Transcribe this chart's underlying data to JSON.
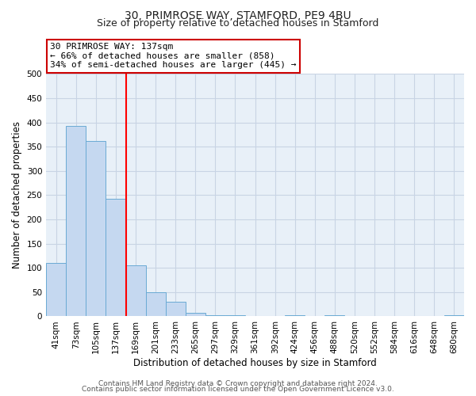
{
  "title": "30, PRIMROSE WAY, STAMFORD, PE9 4BU",
  "subtitle": "Size of property relative to detached houses in Stamford",
  "xlabel": "Distribution of detached houses by size in Stamford",
  "ylabel": "Number of detached properties",
  "bin_labels": [
    "41sqm",
    "73sqm",
    "105sqm",
    "137sqm",
    "169sqm",
    "201sqm",
    "233sqm",
    "265sqm",
    "297sqm",
    "329sqm",
    "361sqm",
    "392sqm",
    "424sqm",
    "456sqm",
    "488sqm",
    "520sqm",
    "552sqm",
    "584sqm",
    "616sqm",
    "648sqm",
    "680sqm"
  ],
  "bar_values": [
    111,
    393,
    361,
    243,
    105,
    50,
    30,
    8,
    2,
    2,
    0,
    0,
    2,
    0,
    2,
    0,
    0,
    0,
    0,
    0,
    2
  ],
  "bar_color": "#c5d8f0",
  "bar_edge_color": "#6aaad4",
  "vline_x_index": 3,
  "vline_color": "#ff0000",
  "annotation_box_text": "30 PRIMROSE WAY: 137sqm\n← 66% of detached houses are smaller (858)\n34% of semi-detached houses are larger (445) →",
  "annotation_box_facecolor": "#ffffff",
  "annotation_box_edgecolor": "#cc0000",
  "ylim": [
    0,
    500
  ],
  "yticks": [
    0,
    50,
    100,
    150,
    200,
    250,
    300,
    350,
    400,
    450,
    500
  ],
  "footer_line1": "Contains HM Land Registry data © Crown copyright and database right 2024.",
  "footer_line2": "Contains public sector information licensed under the Open Government Licence v3.0.",
  "bg_color": "#ffffff",
  "plot_bg_color": "#e8f0f8",
  "grid_color": "#c8d4e4",
  "title_fontsize": 10,
  "subtitle_fontsize": 9,
  "axis_label_fontsize": 8.5,
  "tick_fontsize": 7.5,
  "annotation_fontsize": 8,
  "footer_fontsize": 6.5
}
